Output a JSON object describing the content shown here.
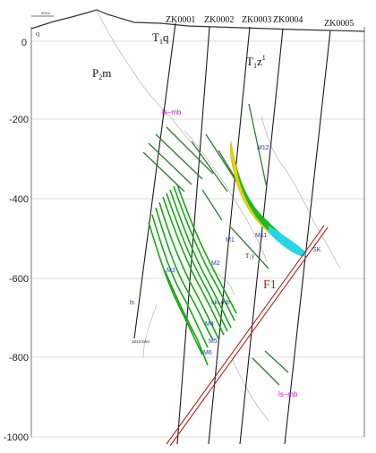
{
  "scale_bar": "500m",
  "holes": [
    "ZK0001",
    "ZK0002",
    "ZK0003",
    "ZK0004",
    "ZK0005"
  ],
  "strata": {
    "q": "Q",
    "p2m_main": "P",
    "p2m_sub": "2",
    "p2m_tail": "m",
    "t1q_main": "T",
    "t1q_sub": "1",
    "t1q_tail": "q",
    "t1z_main": "T",
    "t1z_sub": "1",
    "t1z_tail": "z",
    "t1z_sup": "1",
    "t1y": "T₁y"
  },
  "depths": [
    "0",
    "-200",
    "-400",
    "-600",
    "-800",
    "-1000"
  ],
  "ore_bodies": [
    "M1",
    "M2",
    "M3",
    "M4",
    "M5",
    "M6",
    "M11",
    "M12"
  ],
  "lithology": {
    "ls_mb_top": "ls–mb",
    "ls": "ls",
    "sk_mb": "sk–mb",
    "ls_mb_bottom": "ls–mb",
    "sk": "SK"
  },
  "fault": "F1",
  "hole_depth_note": "1013.54m"
}
